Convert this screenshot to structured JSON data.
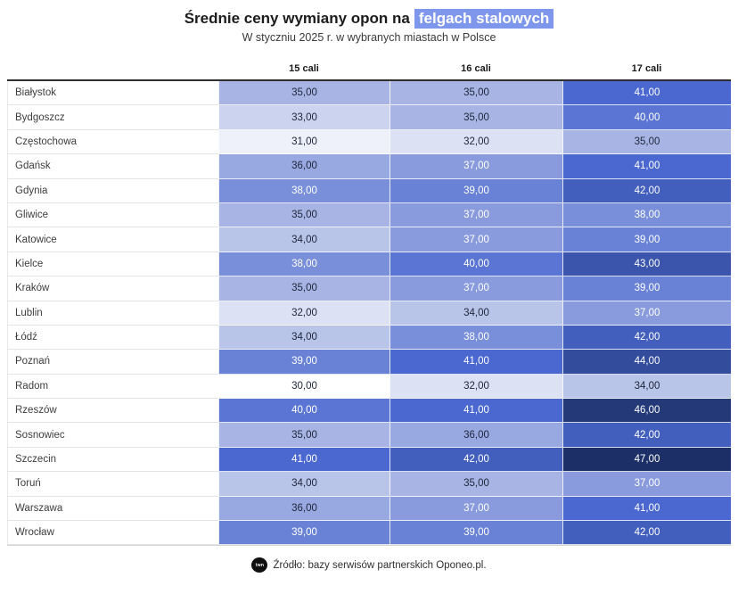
{
  "header": {
    "title_prefix": "Średnie ceny wymiany opon na",
    "title_highlight": "felgach stalowych",
    "subtitle": "W styczniu 2025 r. w wybranych miastach w Polsce",
    "highlight_color": "#7e96ec"
  },
  "chart_data": {
    "type": "heatmap",
    "title": "Średnie ceny wymiany opon na felgach stalowych",
    "subtitle": "W styczniu 2025 r. w wybranych miastach w Polsce",
    "columns": [
      "15 cali",
      "16 cali",
      "17 cali"
    ],
    "rows": [
      {
        "city": "Białystok",
        "values": [
          35,
          35,
          41
        ]
      },
      {
        "city": "Bydgoszcz",
        "values": [
          33,
          35,
          40
        ]
      },
      {
        "city": "Częstochowa",
        "values": [
          31,
          32,
          35
        ]
      },
      {
        "city": "Gdańsk",
        "values": [
          36,
          37,
          41
        ]
      },
      {
        "city": "Gdynia",
        "values": [
          38,
          39,
          42
        ]
      },
      {
        "city": "Gliwice",
        "values": [
          35,
          37,
          38
        ]
      },
      {
        "city": "Katowice",
        "values": [
          34,
          37,
          39
        ]
      },
      {
        "city": "Kielce",
        "values": [
          38,
          40,
          43
        ]
      },
      {
        "city": "Kraków",
        "values": [
          35,
          37,
          39
        ]
      },
      {
        "city": "Lublin",
        "values": [
          32,
          34,
          37
        ]
      },
      {
        "city": "Łódź",
        "values": [
          34,
          38,
          42
        ]
      },
      {
        "city": "Poznań",
        "values": [
          39,
          41,
          44
        ]
      },
      {
        "city": "Radom",
        "values": [
          30,
          32,
          34
        ]
      },
      {
        "city": "Rzeszów",
        "values": [
          40,
          41,
          46
        ]
      },
      {
        "city": "Sosnowiec",
        "values": [
          35,
          36,
          42
        ]
      },
      {
        "city": "Szczecin",
        "values": [
          41,
          42,
          47
        ]
      },
      {
        "city": "Toruń",
        "values": [
          34,
          35,
          37
        ]
      },
      {
        "city": "Warszawa",
        "values": [
          36,
          37,
          41
        ]
      },
      {
        "city": "Wrocław",
        "values": [
          39,
          39,
          42
        ]
      }
    ],
    "value_decimals": 2,
    "value_decimal_separator": ",",
    "color_scale": {
      "stops": [
        [
          30,
          "#ffffff"
        ],
        [
          35,
          "#a8b5e4"
        ],
        [
          41,
          "#4a68cf"
        ],
        [
          47,
          "#1c2f66"
        ]
      ],
      "light_text_threshold": 37,
      "dark_text": "#20283d",
      "light_text": "#ffffff"
    }
  },
  "footer": {
    "source": "Źródło: bazy serwisów partnerskich Oponeo.pl.",
    "logo_text": "twn"
  }
}
